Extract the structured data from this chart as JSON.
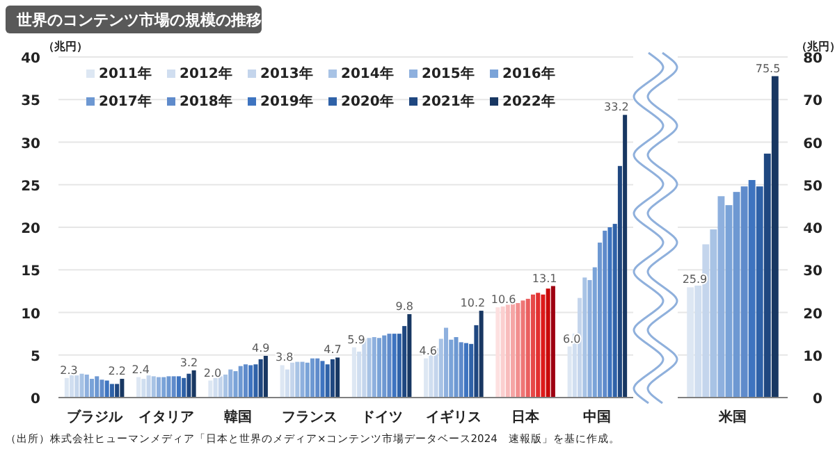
{
  "chart_data": [
    {
      "type": "bar",
      "title": "世界のコンテンツ市場の規模の推移",
      "ylabel": "（兆円）",
      "categories": [
        "ブラジル",
        "イタリア",
        "韓国",
        "フランス",
        "ドイツ",
        "イギリス",
        "日本",
        "中国"
      ],
      "ylim": [
        0,
        40
      ],
      "yticks": [
        0,
        5,
        10,
        15,
        20,
        25,
        30,
        35,
        40
      ],
      "grid": "y",
      "legend": "top",
      "annotations": [
        "（出所）株式会社ヒューマンメディア「日本と世界のメディア×コンテンツ市場データベース2024　速報版」を基に作成。"
      ],
      "series": [
        {
          "name": "2011年",
          "color": "#dde7f3",
          "colors": [
            "#dde7f3",
            "#dde7f3",
            "#dde7f3",
            "#dde7f3",
            "#dde7f3",
            "#dde7f3",
            "#fde0e0",
            "#dde7f3"
          ],
          "values": [
            2.3,
            2.4,
            2.0,
            3.8,
            5.9,
            4.6,
            10.6,
            6.0
          ],
          "value_labels": [
            "2.3",
            "2.4",
            "2.0",
            "3.8",
            "5.9",
            "4.6",
            "10.6",
            "6.0"
          ]
        },
        {
          "name": "2012年",
          "color": "#d0def0",
          "colors": [
            "#d0def0",
            "#d0def0",
            "#d0def0",
            "#d0def0",
            "#d0def0",
            "#d0def0",
            "#fbcfcf",
            "#d0def0"
          ],
          "values": [
            2.9,
            2.2,
            2.3,
            3.3,
            5.4,
            5.0,
            10.7,
            7.5
          ]
        },
        {
          "name": "2013年",
          "color": "#c4d5ec",
          "colors": [
            "#c4d5ec",
            "#c4d5ec",
            "#c4d5ec",
            "#c4d5ec",
            "#c4d5ec",
            "#c4d5ec",
            "#f8bcbc",
            "#c4d5ec"
          ],
          "values": [
            2.6,
            2.6,
            2.5,
            4.1,
            6.9,
            5.8,
            10.9,
            11.7
          ]
        },
        {
          "name": "2014年",
          "color": "#a8c3e5",
          "colors": [
            "#a8c3e5",
            "#a8c3e5",
            "#a8c3e5",
            "#a8c3e5",
            "#a8c3e5",
            "#a8c3e5",
            "#f5a5a5",
            "#a8c3e5"
          ],
          "values": [
            2.8,
            2.5,
            2.7,
            4.2,
            7.0,
            6.9,
            11.1,
            14.1
          ]
        },
        {
          "name": "2015年",
          "color": "#8eb0de",
          "colors": [
            "#8eb0de",
            "#8eb0de",
            "#8eb0de",
            "#8eb0de",
            "#8eb0de",
            "#8eb0de",
            "#f28e8e",
            "#8eb0de"
          ],
          "values": [
            2.7,
            2.4,
            3.3,
            4.2,
            7.1,
            8.2,
            11.1,
            13.8
          ]
        },
        {
          "name": "2016年",
          "color": "#7aa3d8",
          "colors": [
            "#7aa3d8",
            "#7aa3d8",
            "#7aa3d8",
            "#7aa3d8",
            "#7aa3d8",
            "#7aa3d8",
            "#ee7676",
            "#7aa3d8"
          ],
          "values": [
            2.2,
            2.4,
            3.1,
            4.1,
            7.0,
            6.8,
            11.4,
            15.3
          ]
        },
        {
          "name": "2017年",
          "color": "#6d98d2",
          "colors": [
            "#6d98d2",
            "#6d98d2",
            "#6d98d2",
            "#6d98d2",
            "#6d98d2",
            "#6d98d2",
            "#ea5f5f",
            "#6d98d2"
          ],
          "values": [
            2.5,
            2.5,
            3.7,
            4.6,
            7.3,
            7.1,
            11.6,
            18.2
          ]
        },
        {
          "name": "2018年",
          "color": "#5f8bcb",
          "colors": [
            "#5f8bcb",
            "#5f8bcb",
            "#5f8bcb",
            "#5f8bcb",
            "#5f8bcb",
            "#5f8bcb",
            "#e64848",
            "#5f8bcb"
          ],
          "values": [
            2.1,
            2.5,
            3.9,
            4.6,
            7.5,
            6.5,
            12.1,
            19.6
          ]
        },
        {
          "name": "2019年",
          "color": "#3e74c0",
          "colors": [
            "#3e74c0",
            "#3e74c0",
            "#3e74c0",
            "#3e74c0",
            "#3e74c0",
            "#3e74c0",
            "#e23030",
            "#3e74c0"
          ],
          "values": [
            2.0,
            2.5,
            3.8,
            4.3,
            7.5,
            6.4,
            12.3,
            20.0
          ]
        },
        {
          "name": "2020年",
          "color": "#2f62a8",
          "colors": [
            "#2f62a8",
            "#2f62a8",
            "#2f62a8",
            "#2f62a8",
            "#2f62a8",
            "#2f62a8",
            "#dd1a1a",
            "#2f62a8"
          ],
          "values": [
            1.6,
            2.3,
            3.9,
            3.9,
            7.5,
            6.3,
            12.1,
            20.4
          ]
        },
        {
          "name": "2021年",
          "color": "#1f4780",
          "colors": [
            "#1f4780",
            "#1f4780",
            "#1f4780",
            "#1f4780",
            "#1f4780",
            "#1f4780",
            "#c80a0a",
            "#1f4780"
          ],
          "values": [
            1.6,
            2.8,
            4.5,
            4.5,
            8.4,
            8.5,
            12.8,
            27.2
          ]
        },
        {
          "name": "2022年",
          "color": "#183762",
          "colors": [
            "#183762",
            "#183762",
            "#183762",
            "#183762",
            "#183762",
            "#183762",
            "#9e0010",
            "#183762"
          ],
          "values": [
            2.2,
            3.2,
            4.9,
            4.7,
            9.8,
            10.2,
            13.1,
            33.2
          ],
          "value_labels": [
            "2.2",
            "3.2",
            "4.9",
            "4.7",
            "9.8",
            "10.2",
            "13.1",
            "33.2"
          ]
        }
      ]
    },
    {
      "type": "bar",
      "categories": [
        "米国"
      ],
      "y2label": "（兆円）",
      "y2lim": [
        0,
        80
      ],
      "y2ticks": [
        0,
        10,
        20,
        30,
        40,
        50,
        60,
        70,
        80
      ],
      "grid": "y",
      "series": [
        {
          "color": "#dde7f3",
          "axis": "y2",
          "values": [
            25.9
          ],
          "value_labels": [
            "25.9"
          ]
        },
        {
          "color": "#d0def0",
          "axis": "y2",
          "values": [
            26.3
          ]
        },
        {
          "color": "#c4d5ec",
          "axis": "y2",
          "values": [
            36.0
          ]
        },
        {
          "color": "#a8c3e5",
          "axis": "y2",
          "values": [
            39.5
          ]
        },
        {
          "color": "#8eb0de",
          "axis": "y2",
          "values": [
            47.3
          ]
        },
        {
          "color": "#7aa3d8",
          "axis": "y2",
          "values": [
            45.2
          ]
        },
        {
          "color": "#6d98d2",
          "axis": "y2",
          "values": [
            48.3
          ]
        },
        {
          "color": "#5f8bcb",
          "axis": "y2",
          "values": [
            49.6
          ]
        },
        {
          "color": "#3e74c0",
          "axis": "y2",
          "values": [
            51.1
          ]
        },
        {
          "color": "#2f62a8",
          "axis": "y2",
          "values": [
            49.6
          ]
        },
        {
          "color": "#1f4780",
          "axis": "y2",
          "values": [
            57.3
          ]
        },
        {
          "color": "#183762",
          "axis": "y2",
          "values": [
            75.5
          ],
          "value_labels": [
            "75.5"
          ]
        }
      ]
    }
  ]
}
